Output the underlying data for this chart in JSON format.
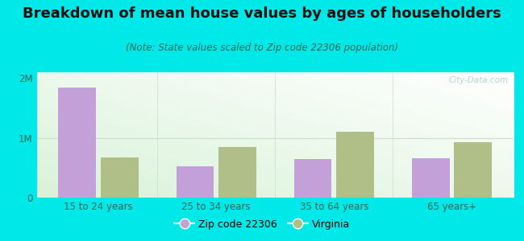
{
  "title": "Breakdown of mean house values by ages of householders",
  "subtitle": "(Note: State values scaled to Zip code 22306 population)",
  "categories": [
    "15 to 24 years",
    "25 to 34 years",
    "35 to 64 years",
    "65 years+"
  ],
  "zip_values": [
    1850000,
    520000,
    640000,
    660000
  ],
  "state_values": [
    670000,
    850000,
    1110000,
    930000
  ],
  "zip_color": "#c4a0d8",
  "state_color": "#b0bf88",
  "background_outer": "#00e8e8",
  "ylim": [
    0,
    2100000
  ],
  "yticks": [
    0,
    1000000,
    2000000
  ],
  "ytick_labels": [
    "0",
    "1M",
    "2M"
  ],
  "legend_zip": "Zip code 22306",
  "legend_state": "Virginia",
  "title_fontsize": 13,
  "subtitle_fontsize": 8.5,
  "watermark": "City-Data.com",
  "grid_color": "#ccddcc",
  "bar_width": 0.32,
  "bar_gap": 0.04
}
